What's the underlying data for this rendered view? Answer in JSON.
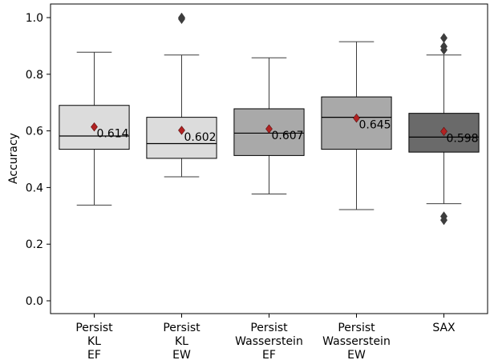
{
  "chart_data": {
    "type": "box",
    "ylabel": "Accuracy",
    "xlabel": "",
    "ylim": [
      -0.045,
      1.05
    ],
    "yticks": [
      0.0,
      0.2,
      0.4,
      0.6,
      0.8,
      1.0
    ],
    "ytick_labels": [
      "0.0",
      "0.2",
      "0.4",
      "0.6",
      "0.8",
      "1.0"
    ],
    "grid": false,
    "legend": "none",
    "categories": [
      [
        "Persist",
        "KL",
        "EF"
      ],
      [
        "Persist",
        "KL",
        "EW"
      ],
      [
        "Persist",
        "Wasserstein",
        "EF"
      ],
      [
        "Persist",
        "Wasserstein",
        "EW"
      ],
      [
        "SAX"
      ]
    ],
    "boxes": [
      {
        "q1": 0.535,
        "median": 0.582,
        "q3": 0.69,
        "whisker_low": 0.338,
        "whisker_high": 0.878,
        "mean": 0.614,
        "mean_label": "0.614",
        "fill": "#dcdcdc",
        "outliers": []
      },
      {
        "q1": 0.503,
        "median": 0.555,
        "q3": 0.648,
        "whisker_low": 0.438,
        "whisker_high": 0.868,
        "mean": 0.602,
        "mean_label": "0.602",
        "fill": "#dcdcdc",
        "outliers": [
          0.995,
          1.0
        ]
      },
      {
        "q1": 0.513,
        "median": 0.592,
        "q3": 0.678,
        "whisker_low": 0.377,
        "whisker_high": 0.858,
        "mean": 0.607,
        "mean_label": "0.607",
        "fill": "#a9a9a9",
        "outliers": []
      },
      {
        "q1": 0.535,
        "median": 0.648,
        "q3": 0.72,
        "whisker_low": 0.322,
        "whisker_high": 0.915,
        "mean": 0.645,
        "mean_label": "0.645",
        "fill": "#a9a9a9",
        "outliers": []
      },
      {
        "q1": 0.525,
        "median": 0.578,
        "q3": 0.662,
        "whisker_low": 0.343,
        "whisker_high": 0.868,
        "mean": 0.598,
        "mean_label": "0.598",
        "fill": "#6a6a6a",
        "outliers": [
          0.928,
          0.898,
          0.886,
          0.298,
          0.285
        ]
      }
    ],
    "colors": {
      "mean_marker": "#b22222",
      "outlier_marker": "#3d3d3d",
      "line": "#3d3d3d",
      "median": "#000000"
    }
  }
}
